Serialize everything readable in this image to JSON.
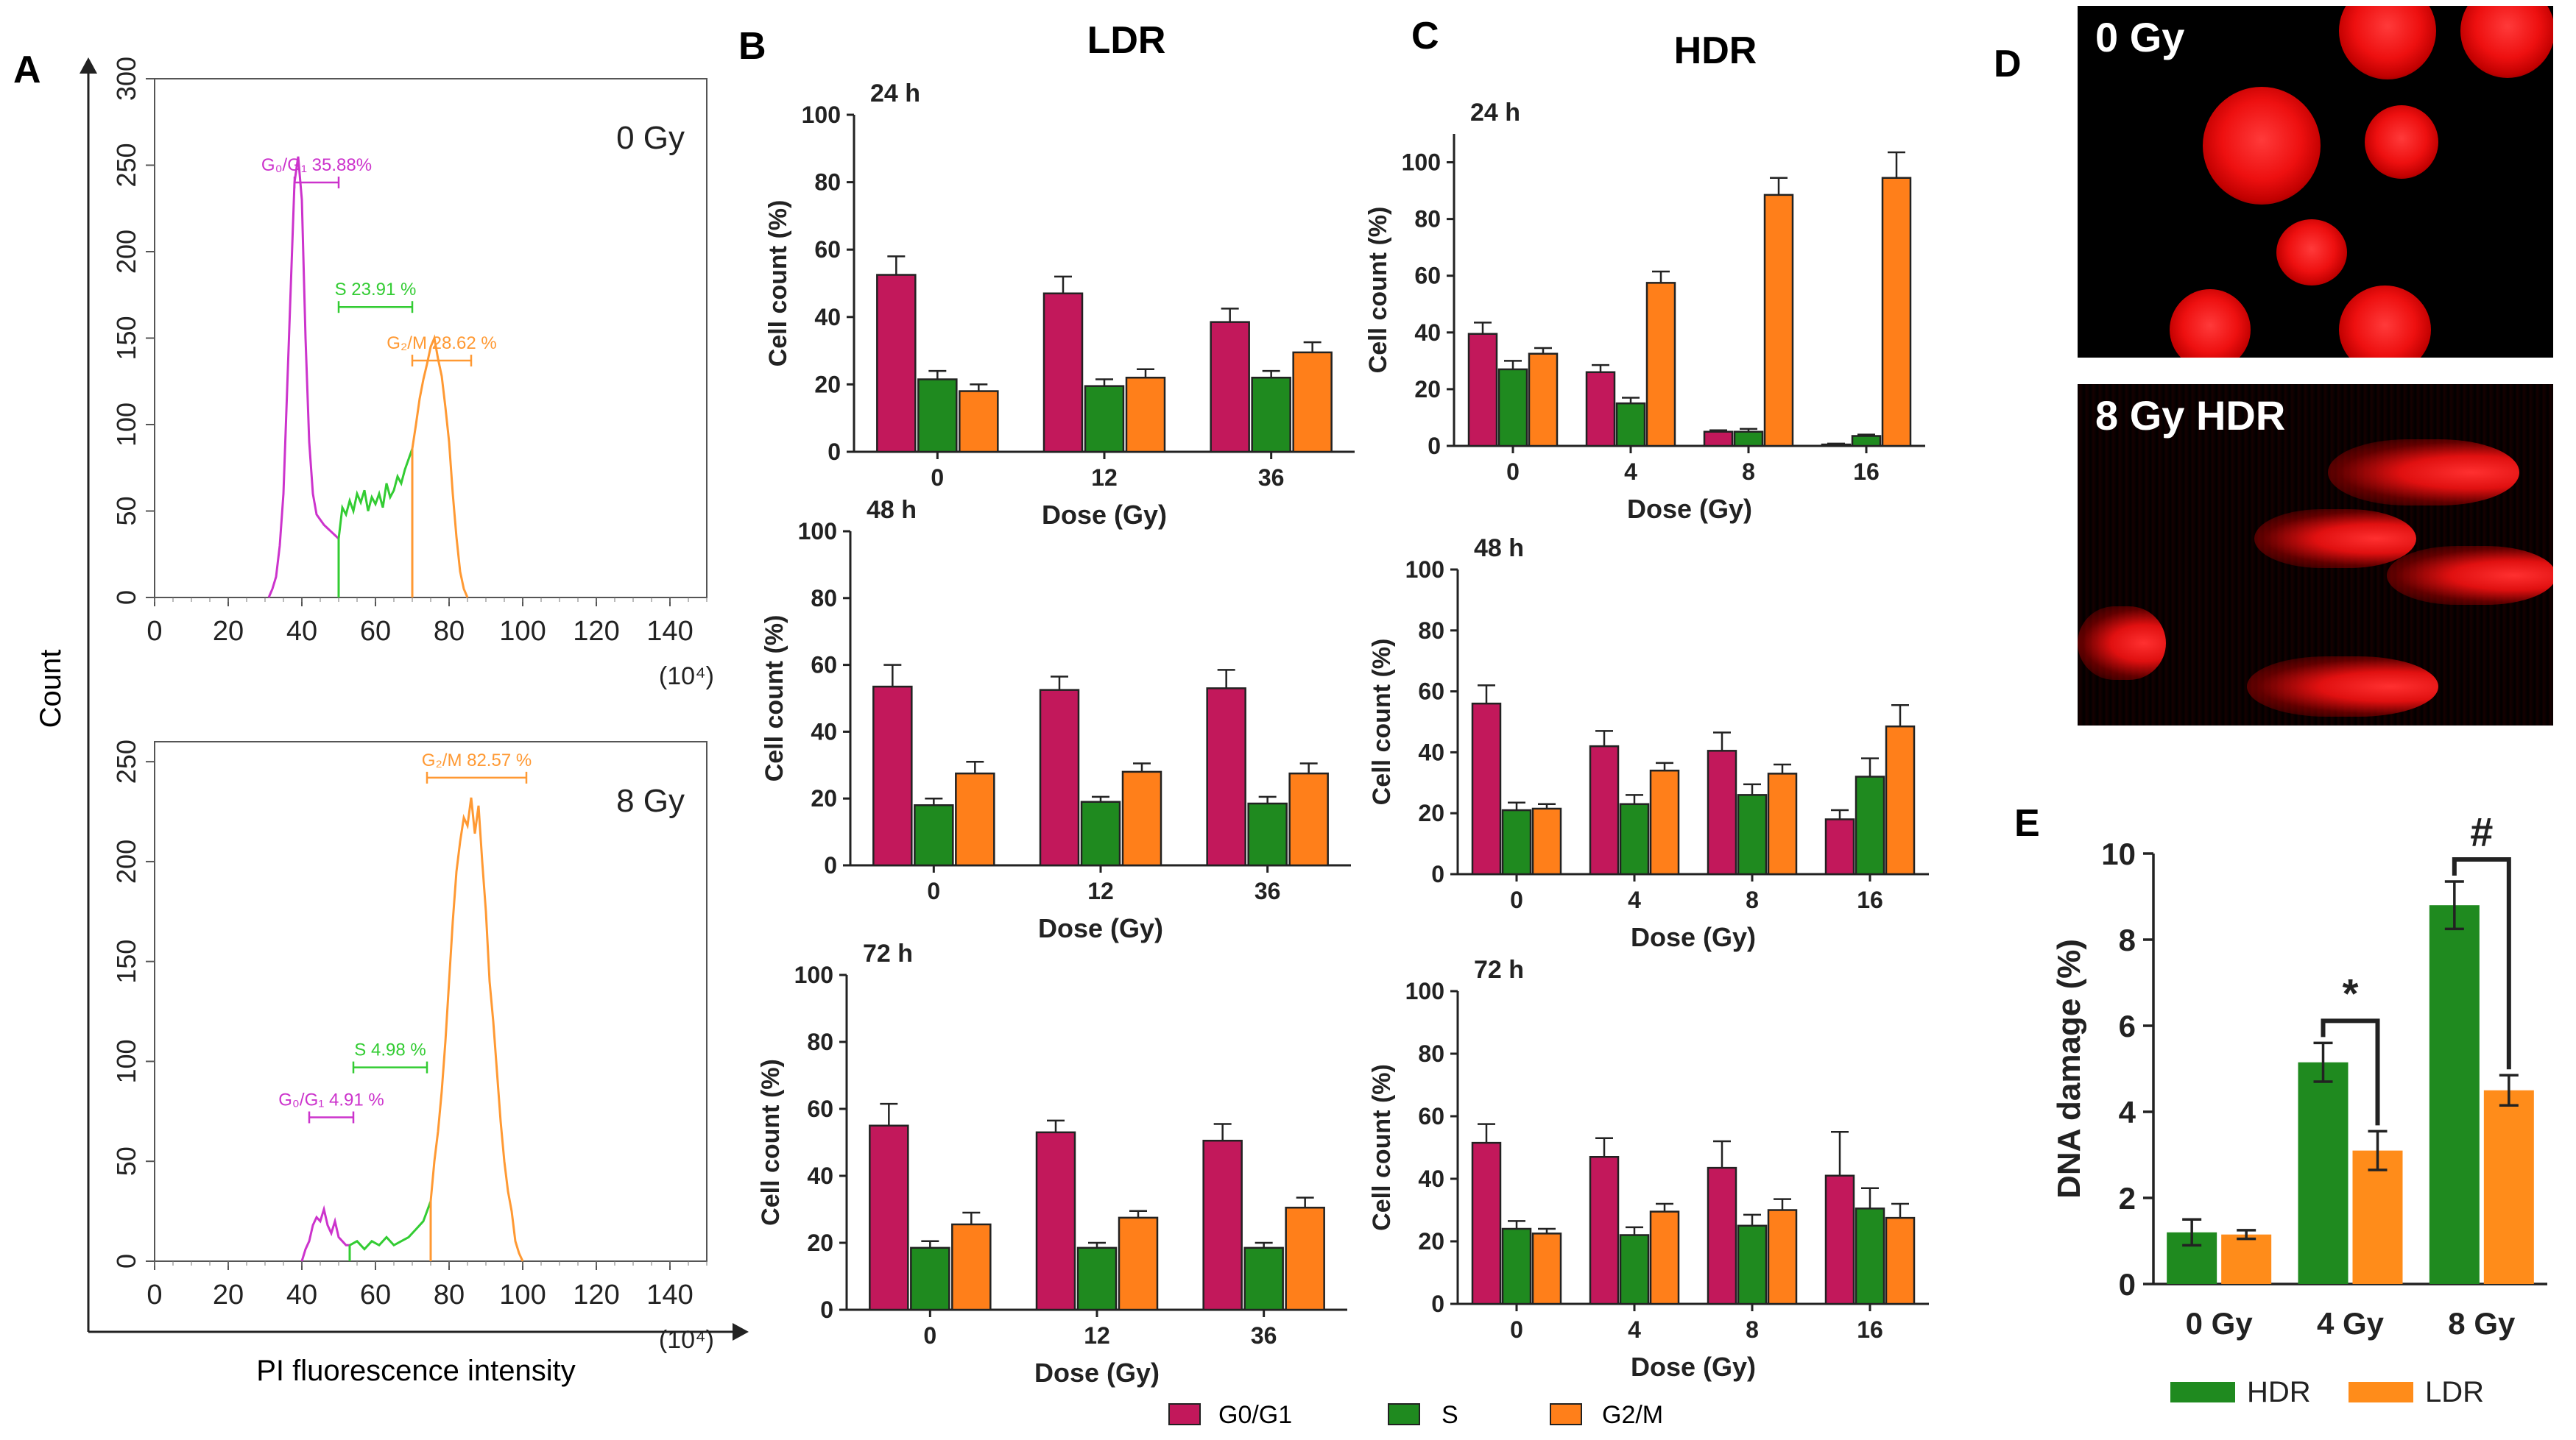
{
  "panel_labels": {
    "A": "A",
    "B": "B",
    "C": "C",
    "D": "D",
    "E": "E"
  },
  "titles": {
    "ldr": "LDR",
    "hdr": "HDR"
  },
  "colors": {
    "g0g1": "#c2185b",
    "s": "#1f8a1f",
    "g2m": "#ff7f1a",
    "hist_g0": "#cc33cc",
    "hist_s": "#33cc33",
    "hist_g2m": "#ff9933",
    "hdr": "#1f8a1f",
    "ldr": "#ff8c1a"
  },
  "legend": {
    "g0g1": "G0/G1",
    "s": "S",
    "g2m": "G2/M"
  },
  "chart_data": [
    {
      "id": "hist_0gy",
      "type": "histogram",
      "label": "0 Gy",
      "ylabel": "Count",
      "xlabel": "PI fluorescence intensity",
      "x_unit": "(10⁴)",
      "xlim": [
        0,
        150
      ],
      "ylim": [
        0,
        300
      ],
      "xticks": [
        "0",
        "20",
        "40",
        "60",
        "80",
        "100",
        "120",
        "140"
      ],
      "yticks": [
        "0",
        "50",
        "100",
        "150",
        "200",
        "250",
        "300"
      ],
      "gates": [
        {
          "label": "G₀/G₁ 35.88%",
          "from": 38,
          "to": 50,
          "y": 240,
          "phase": "g0g1"
        },
        {
          "label": "S 23.91 %",
          "from": 50,
          "to": 70,
          "y": 168,
          "phase": "s"
        },
        {
          "label": "G₂/M 28.62 %",
          "from": 70,
          "to": 86,
          "y": 137,
          "phase": "g2m"
        }
      ],
      "series": [
        {
          "phase": "g0g1",
          "x": [
            31,
            32,
            33,
            34,
            35,
            36,
            37,
            38,
            39,
            40,
            41,
            42,
            43,
            44,
            45,
            46,
            47,
            48,
            49,
            50
          ],
          "y": [
            0,
            5,
            12,
            30,
            60,
            120,
            180,
            240,
            255,
            230,
            150,
            90,
            60,
            48,
            45,
            42,
            40,
            38,
            36,
            34
          ]
        },
        {
          "phase": "s",
          "x": [
            50,
            51,
            52,
            53,
            54,
            55,
            56,
            57,
            58,
            59,
            60,
            61,
            62,
            63,
            64,
            65,
            66,
            67,
            68,
            69,
            70
          ],
          "y": [
            34,
            52,
            48,
            56,
            50,
            60,
            55,
            62,
            50,
            58,
            54,
            60,
            52,
            66,
            58,
            62,
            70,
            66,
            74,
            80,
            86
          ]
        },
        {
          "phase": "g2m",
          "x": [
            70,
            71,
            72,
            73,
            74,
            75,
            76,
            77,
            78,
            79,
            80,
            81,
            82,
            83,
            84,
            85
          ],
          "y": [
            86,
            100,
            115,
            126,
            135,
            145,
            150,
            138,
            128,
            110,
            90,
            60,
            35,
            15,
            5,
            0
          ]
        }
      ]
    },
    {
      "id": "hist_8gy",
      "type": "histogram",
      "label": "8 Gy",
      "ylabel": "Count",
      "xlabel": "PI fluorescence intensity",
      "x_unit": "(10⁴)",
      "xlim": [
        0,
        150
      ],
      "ylim": [
        0,
        260
      ],
      "xticks": [
        "0",
        "20",
        "40",
        "60",
        "80",
        "100",
        "120",
        "140"
      ],
      "yticks": [
        "0",
        "50",
        "100",
        "150",
        "200",
        "250"
      ],
      "gates": [
        {
          "label": "G₂/M 82.57 %",
          "from": 74,
          "to": 101,
          "y": 242,
          "phase": "g2m"
        },
        {
          "label": "S 4.98 %",
          "from": 54,
          "to": 74,
          "y": 97,
          "phase": "s"
        },
        {
          "label": "G₀/G₁ 4.91 %",
          "from": 42,
          "to": 54,
          "y": 72,
          "phase": "g0g1"
        }
      ],
      "series": [
        {
          "phase": "g0g1",
          "x": [
            40,
            41,
            42,
            43,
            44,
            45,
            46,
            47,
            48,
            49,
            50,
            51,
            52,
            53
          ],
          "y": [
            0,
            6,
            10,
            18,
            22,
            20,
            26,
            18,
            14,
            20,
            12,
            10,
            8,
            8
          ]
        },
        {
          "phase": "s",
          "x": [
            53,
            55,
            57,
            59,
            61,
            63,
            65,
            67,
            69,
            71,
            73,
            75
          ],
          "y": [
            8,
            10,
            6,
            10,
            8,
            12,
            8,
            10,
            12,
            16,
            20,
            30
          ]
        },
        {
          "phase": "g2m",
          "x": [
            75,
            76,
            77,
            78,
            79,
            80,
            81,
            82,
            83,
            84,
            85,
            86,
            87,
            88,
            89,
            90,
            91,
            92,
            93,
            94,
            95,
            96,
            97,
            98,
            99,
            100
          ],
          "y": [
            30,
            50,
            65,
            85,
            110,
            140,
            170,
            195,
            210,
            222,
            218,
            232,
            214,
            228,
            200,
            175,
            140,
            120,
            95,
            70,
            50,
            35,
            25,
            10,
            4,
            0
          ]
        }
      ]
    },
    {
      "id": "ldr_24h",
      "type": "bar",
      "title": "24 h",
      "xlabel": "Dose (Gy)",
      "ylabel": "Cell count (%)",
      "categories": [
        "0",
        "12",
        "36"
      ],
      "ylim": [
        0,
        100
      ],
      "yticks": [
        "0",
        "20",
        "40",
        "60",
        "80",
        "100"
      ],
      "series": [
        {
          "name": "G0/G1",
          "values": [
            52.5,
            47,
            38.5
          ],
          "errors": [
            5.5,
            5,
            4
          ]
        },
        {
          "name": "S",
          "values": [
            21.5,
            19.5,
            22
          ],
          "errors": [
            2.5,
            2,
            2
          ]
        },
        {
          "name": "G2/M",
          "values": [
            18,
            22,
            29.5
          ],
          "errors": [
            2,
            2.5,
            3
          ]
        }
      ]
    },
    {
      "id": "ldr_48h",
      "type": "bar",
      "title": "48 h",
      "xlabel": "Dose (Gy)",
      "ylabel": "Cell count (%)",
      "categories": [
        "0",
        "12",
        "36"
      ],
      "ylim": [
        0,
        100
      ],
      "yticks": [
        "0",
        "20",
        "40",
        "60",
        "80",
        "100"
      ],
      "series": [
        {
          "name": "G0/G1",
          "values": [
            53.5,
            52.5,
            53
          ],
          "errors": [
            6.5,
            4,
            5.5
          ]
        },
        {
          "name": "S",
          "values": [
            18,
            19,
            18.5
          ],
          "errors": [
            2,
            1.5,
            2
          ]
        },
        {
          "name": "G2/M",
          "values": [
            27.5,
            28,
            27.5
          ],
          "errors": [
            3.5,
            2.5,
            3
          ]
        }
      ]
    },
    {
      "id": "ldr_72h",
      "type": "bar",
      "title": "72 h",
      "xlabel": "Dose (Gy)",
      "ylabel": "Cell count (%)",
      "categories": [
        "0",
        "12",
        "36"
      ],
      "ylim": [
        0,
        100
      ],
      "yticks": [
        "0",
        "20",
        "40",
        "60",
        "80",
        "100"
      ],
      "series": [
        {
          "name": "G0/G1",
          "values": [
            55,
            53,
            50.5
          ],
          "errors": [
            6.5,
            3.5,
            5
          ]
        },
        {
          "name": "S",
          "values": [
            18.5,
            18.5,
            18.5
          ],
          "errors": [
            2,
            1.5,
            1.5
          ]
        },
        {
          "name": "G2/M",
          "values": [
            25.5,
            27.5,
            30.5
          ],
          "errors": [
            3.5,
            2,
            3
          ]
        }
      ]
    },
    {
      "id": "hdr_24h",
      "type": "bar",
      "title": "24 h",
      "xlabel": "Dose (Gy)",
      "ylabel": "Cell count (%)",
      "categories": [
        "0",
        "4",
        "8",
        "16"
      ],
      "ylim": [
        0,
        110
      ],
      "yticks": [
        "0",
        "20",
        "40",
        "60",
        "80",
        "100"
      ],
      "series": [
        {
          "name": "G0/G1",
          "values": [
            39.5,
            26,
            5,
            0.5
          ],
          "errors": [
            4,
            2.5,
            0.5,
            0.3
          ]
        },
        {
          "name": "S",
          "values": [
            27,
            15,
            5,
            3.5
          ],
          "errors": [
            3,
            2,
            1,
            0.5
          ]
        },
        {
          "name": "G2/M",
          "values": [
            32.5,
            57.5,
            88.5,
            94.5
          ],
          "errors": [
            2,
            4,
            6,
            9
          ]
        }
      ]
    },
    {
      "id": "hdr_48h",
      "type": "bar",
      "title": "48 h",
      "xlabel": "Dose (Gy)",
      "ylabel": "Cell count (%)",
      "categories": [
        "0",
        "4",
        "8",
        "16"
      ],
      "ylim": [
        0,
        100
      ],
      "yticks": [
        "0",
        "20",
        "40",
        "60",
        "80",
        "100"
      ],
      "series": [
        {
          "name": "G0/G1",
          "values": [
            56,
            42,
            40.5,
            18
          ],
          "errors": [
            6,
            5,
            6,
            3
          ]
        },
        {
          "name": "S",
          "values": [
            21,
            23,
            26,
            32
          ],
          "errors": [
            2.5,
            3,
            3.5,
            6
          ]
        },
        {
          "name": "G2/M",
          "values": [
            21.5,
            34,
            33,
            48.5
          ],
          "errors": [
            1.5,
            2.5,
            3,
            7
          ]
        }
      ]
    },
    {
      "id": "hdr_72h",
      "type": "bar",
      "title": "72 h",
      "xlabel": "Dose (Gy)",
      "ylabel": "Cell count (%)",
      "categories": [
        "0",
        "4",
        "8",
        "16"
      ],
      "ylim": [
        0,
        100
      ],
      "yticks": [
        "0",
        "20",
        "40",
        "60",
        "80",
        "100"
      ],
      "series": [
        {
          "name": "G0/G1",
          "values": [
            51.5,
            47,
            43.5,
            41
          ],
          "errors": [
            6,
            6,
            8.5,
            14
          ]
        },
        {
          "name": "S",
          "values": [
            24,
            22,
            25,
            30.5
          ],
          "errors": [
            2.5,
            2.5,
            3.5,
            6.5
          ]
        },
        {
          "name": "G2/M",
          "values": [
            22.5,
            29.5,
            30,
            27.5
          ],
          "errors": [
            1.5,
            2.5,
            3.5,
            4.5
          ]
        }
      ]
    },
    {
      "id": "dna_damage",
      "type": "bar",
      "ylabel": "DNA damage (%)",
      "categories": [
        "0 Gy",
        "4 Gy",
        "8 Gy"
      ],
      "ylim": [
        0,
        10
      ],
      "yticks": [
        "0",
        "2",
        "4",
        "6",
        "8",
        "10"
      ],
      "series": [
        {
          "name": "HDR",
          "values": [
            1.2,
            5.15,
            8.8
          ],
          "errors": [
            0.3,
            0.45,
            0.55
          ]
        },
        {
          "name": "LDR",
          "values": [
            1.15,
            3.1,
            4.5
          ],
          "errors": [
            0.1,
            0.45,
            0.35
          ]
        }
      ],
      "significance": [
        {
          "category": "4 Gy",
          "marker": "*"
        },
        {
          "category": "8 Gy",
          "marker": "#"
        }
      ]
    }
  ],
  "micrographs": {
    "top_label": "0 Gy",
    "bottom_label": "8 Gy HDR"
  }
}
